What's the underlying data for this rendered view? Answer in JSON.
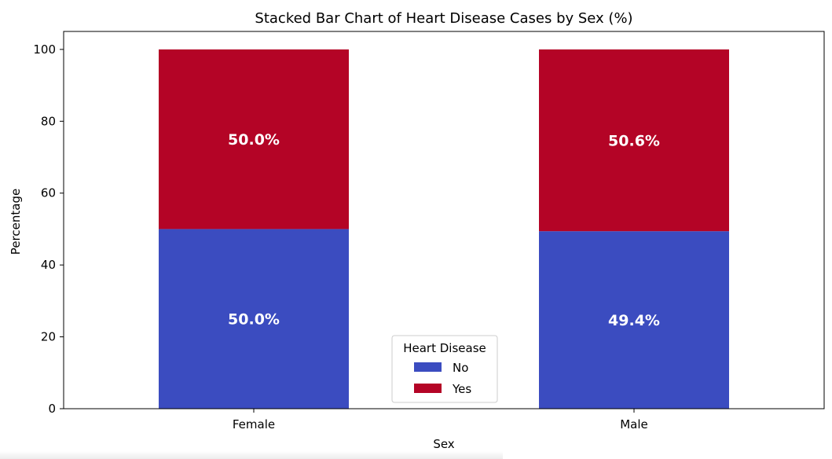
{
  "chart_data": {
    "type": "bar",
    "stacked": true,
    "title": "Stacked Bar Chart of Heart Disease Cases by Sex (%)",
    "xlabel": "Sex",
    "ylabel": "Percentage",
    "categories": [
      "Female",
      "Male"
    ],
    "ylim": [
      0,
      105
    ],
    "yticks": [
      0,
      20,
      40,
      60,
      80,
      100
    ],
    "grid": false,
    "series": [
      {
        "name": "No",
        "color": "#3b4cc0",
        "values": [
          50.0,
          49.4
        ],
        "labels": [
          "50.0%",
          "49.4%"
        ]
      },
      {
        "name": "Yes",
        "color": "#b40426",
        "values": [
          50.0,
          50.6
        ],
        "labels": [
          "50.0%",
          "50.6%"
        ]
      }
    ],
    "legend": {
      "title": "Heart Disease",
      "placement": "lower-center"
    }
  }
}
